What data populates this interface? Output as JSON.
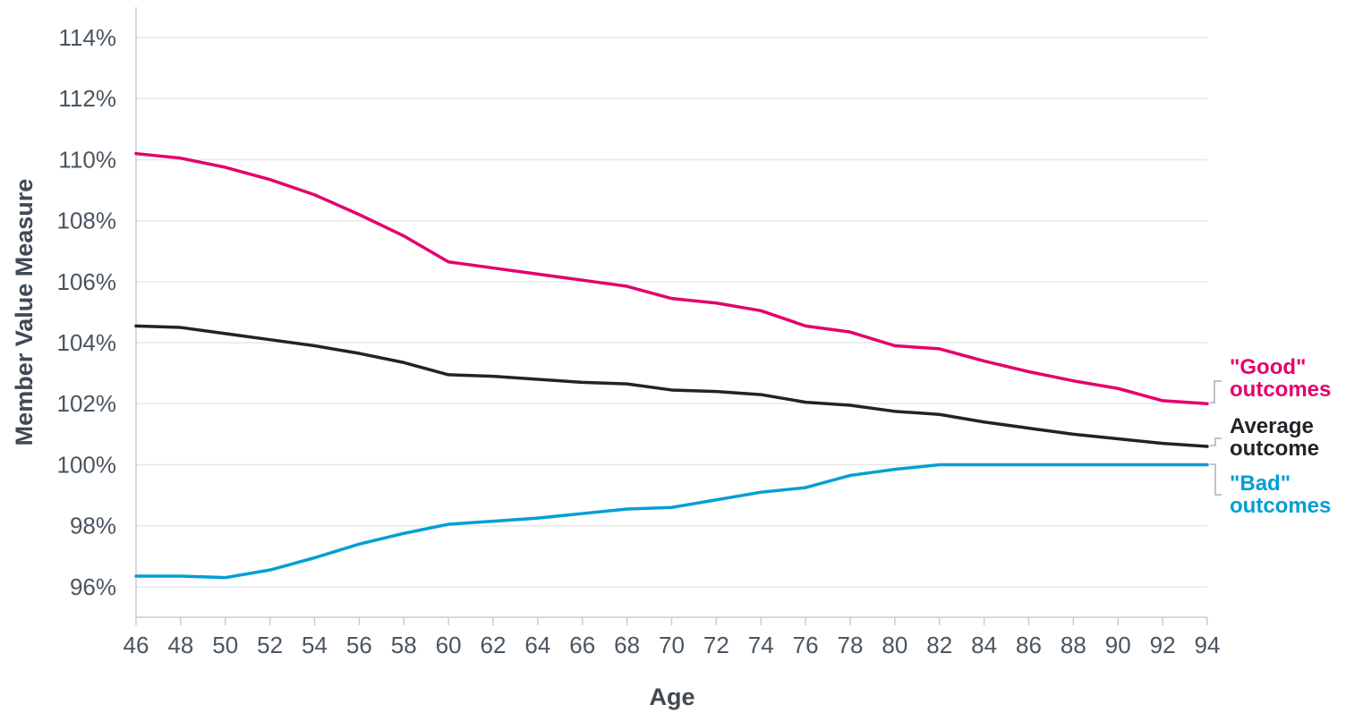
{
  "chart_data": {
    "type": "line",
    "x_label": "Age",
    "y_label": "Member Value Measure",
    "x": [
      46,
      48,
      50,
      52,
      54,
      56,
      58,
      60,
      62,
      64,
      66,
      68,
      70,
      72,
      74,
      76,
      78,
      80,
      82,
      84,
      86,
      88,
      90,
      92,
      94
    ],
    "series": [
      {
        "name": "\"Good\" outcomes",
        "color": "#e4006d",
        "values": [
          110.2,
          110.05,
          109.75,
          109.35,
          108.85,
          108.2,
          107.5,
          106.65,
          106.45,
          106.25,
          106.05,
          105.85,
          105.45,
          105.3,
          105.05,
          104.55,
          104.35,
          103.9,
          103.8,
          103.4,
          103.05,
          102.75,
          102.5,
          102.1,
          102.0
        ]
      },
      {
        "name": "Average outcome",
        "color": "#1f2429",
        "values": [
          104.55,
          104.5,
          104.3,
          104.1,
          103.9,
          103.65,
          103.35,
          102.95,
          102.9,
          102.8,
          102.7,
          102.65,
          102.45,
          102.4,
          102.3,
          102.05,
          101.95,
          101.75,
          101.65,
          101.4,
          101.2,
          101.0,
          100.85,
          100.7,
          100.6
        ]
      },
      {
        "name": "\"Bad\" outcomes",
        "color": "#009fd4",
        "values": [
          96.35,
          96.35,
          96.3,
          96.55,
          96.95,
          97.4,
          97.75,
          98.05,
          98.15,
          98.25,
          98.4,
          98.55,
          98.6,
          98.85,
          99.1,
          99.25,
          99.65,
          99.85,
          100.0,
          100.0,
          100.0,
          100.0,
          100.0,
          100.0,
          100.0
        ]
      }
    ],
    "xlim": [
      46,
      94
    ],
    "xticks": [
      46,
      48,
      50,
      52,
      54,
      56,
      58,
      60,
      62,
      64,
      66,
      68,
      70,
      72,
      74,
      76,
      78,
      80,
      82,
      84,
      86,
      88,
      90,
      92,
      94
    ],
    "ylim": [
      95,
      115
    ],
    "yticks": [
      {
        "value": 96,
        "label": "96%"
      },
      {
        "value": 98,
        "label": "98%"
      },
      {
        "value": 100,
        "label": "100%"
      },
      {
        "value": 102,
        "label": "102%"
      },
      {
        "value": 104,
        "label": "104%"
      },
      {
        "value": 106,
        "label": "106%"
      },
      {
        "value": 108,
        "label": "108%"
      },
      {
        "value": 110,
        "label": "110%"
      },
      {
        "value": 112,
        "label": "112%"
      },
      {
        "value": 114,
        "label": "114%"
      }
    ],
    "grid": true
  }
}
